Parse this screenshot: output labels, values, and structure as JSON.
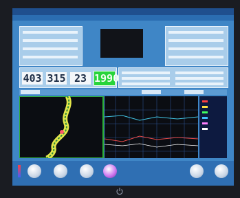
{
  "display": {
    "readings": [
      "403",
      "315",
      "23"
    ],
    "highlight": "1990"
  }
}
